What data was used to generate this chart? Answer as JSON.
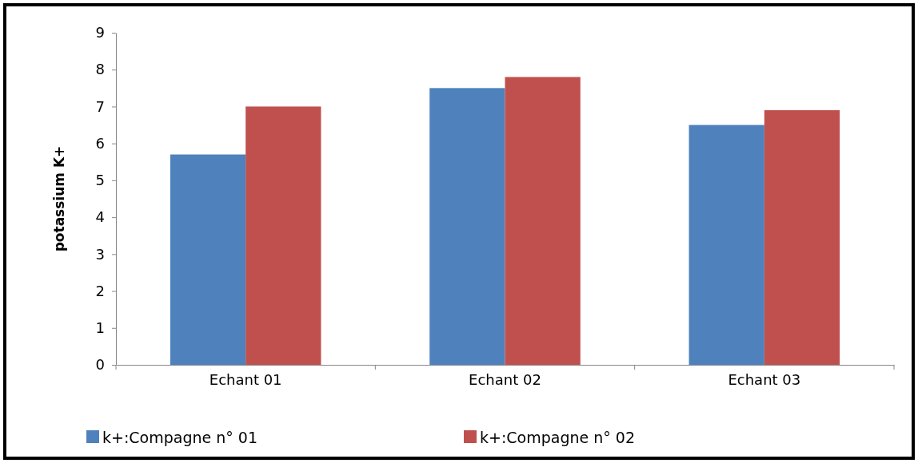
{
  "chart_data": {
    "type": "bar",
    "ylabel": "potassium K+",
    "categories": [
      "Echant 01",
      "Echant 02",
      "Echant 03"
    ],
    "series": [
      {
        "name": "k+:Compagne n° 01",
        "color": "#4f81bd",
        "values": [
          5.7,
          7.5,
          6.5
        ]
      },
      {
        "name": "k+:Compagne n° 02",
        "color": "#c0504d",
        "values": [
          7.0,
          7.8,
          6.9
        ]
      }
    ],
    "ylim": [
      0,
      9
    ],
    "yticks": [
      0,
      1,
      2,
      3,
      4,
      5,
      6,
      7,
      8,
      9
    ],
    "grid": false,
    "legend": "bottom"
  }
}
